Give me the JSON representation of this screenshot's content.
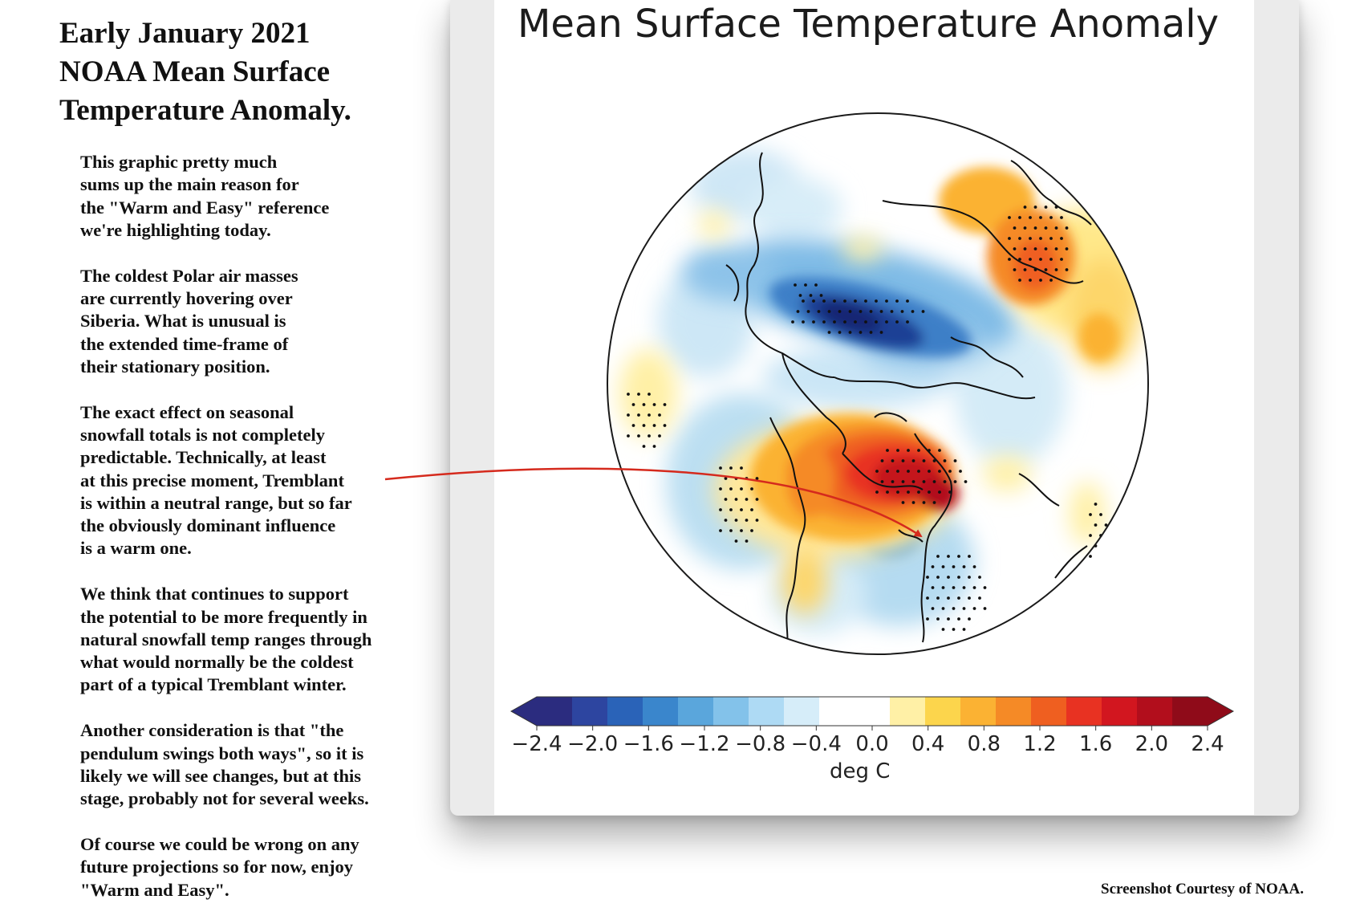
{
  "headline": [
    "Early January 2021",
    "NOAA Mean Surface",
    "Temperature Anomaly."
  ],
  "paragraphs": [
    [
      "This graphic pretty much",
      "sums up the main reason for",
      "the \"Warm and Easy\" reference",
      "we're highlighting today."
    ],
    [
      "The coldest Polar air masses",
      "are currently hovering over",
      "Siberia. What is unusual is",
      "the extended time-frame of",
      "their stationary position."
    ],
    [
      "The exact effect on seasonal",
      "snowfall totals is not completely",
      "predictable. Technically, at least",
      "at this precise moment, Tremblant",
      "is within a neutral range, but so far",
      "the obviously dominant influence",
      "is a warm one."
    ],
    [
      "We think that continues to support",
      "the potential to be more frequently in",
      "natural snowfall temp ranges through",
      "what would normally be the coldest",
      "part of a typical Tremblant winter."
    ],
    [
      "Another consideration is that \"the",
      "pendulum swings both ways\", so it is",
      "likely we will see changes, but at this",
      "stage, probably not for several weeks."
    ],
    [
      "Of course we could be wrong on any",
      "future projections so for now, enjoy",
      "\"Warm and Easy\"."
    ]
  ],
  "figure": {
    "title": "Mean Surface Temperature Anomaly",
    "colorbar_ticks": [
      "−2.4",
      "−2.0",
      "−1.6",
      "−1.2",
      "−0.8",
      "−0.4",
      "0.0",
      "0.4",
      "0.8",
      "1.2",
      "1.6",
      "2.0",
      "2.4"
    ],
    "colorbar_unit": "deg C",
    "colorbar_range": [
      -2.4,
      2.4
    ],
    "colorbar_colors": [
      "#2b2c7f",
      "#2d45a0",
      "#2a63b8",
      "#3a86cc",
      "#5aa6dc",
      "#83c2ea",
      "#aedaf4",
      "#d6edf9",
      "#ffffff",
      "#ffffff",
      "#fff0a6",
      "#fcd54c",
      "#fbb233",
      "#f58a26",
      "#ef5f20",
      "#e83222",
      "#d2161f",
      "#b20e1c",
      "#8f0b19"
    ],
    "colorbar_extend": "both",
    "projection": "north polar stereographic",
    "stippling": "dots mark statistically significant anomalies",
    "arrow_annotation": "arrow from Tremblant text to the Tremblant location on the map"
  },
  "credit": "Screenshot Courtesy of NOAA."
}
